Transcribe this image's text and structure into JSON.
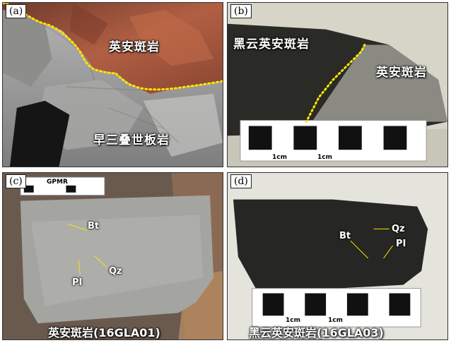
{
  "panels": [
    {
      "letter": "(a)",
      "labels": [
        "英安斑岩",
        "早三叠世板岩"
      ]
    },
    {
      "letter": "(b)",
      "labels": [
        "黑云英安斑岩",
        "英安斑岩"
      ]
    },
    {
      "letter": "(c)",
      "scale_text": "GPMR",
      "minerals": [
        "Bt",
        "PI",
        "Qz"
      ],
      "caption": "英安斑岩(16GLA01)"
    },
    {
      "letter": "(d)",
      "minerals": [
        "Bt",
        "Qz",
        "PI"
      ],
      "caption": "黑云英安斑岩(16GLA03)"
    }
  ],
  "scale_unit": "1cm",
  "colors": {
    "boundary_dotted": "#ffe600",
    "rock_red": "#a9533a",
    "rock_grey": "#9a9a9a",
    "rock_dark": "#2a2a28"
  }
}
